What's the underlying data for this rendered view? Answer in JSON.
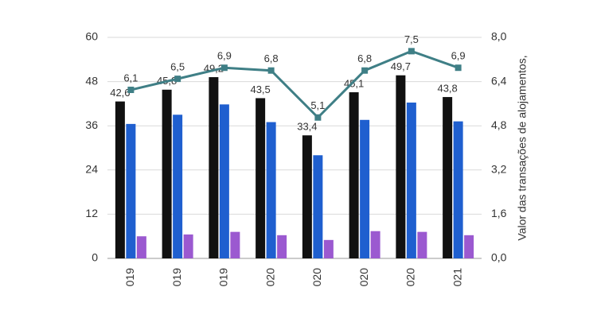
{
  "chart_data": {
    "type": "bar",
    "y2_label": "Valor das transações de alojamentos,",
    "categories": [
      "019",
      "019",
      "019",
      "020",
      "020",
      "020",
      "020",
      "021"
    ],
    "series": [
      {
        "color": "#111111",
        "values": [
          42.6,
          45.8,
          49.2,
          43.5,
          33.4,
          45.1,
          49.7,
          43.8
        ],
        "value_labels": [
          "42,6",
          "45,8",
          "49,2",
          "43,5",
          "33,4",
          "45,1",
          "49,7",
          "43,8"
        ]
      },
      {
        "color": "#1f5fcf",
        "values": [
          36.5,
          39,
          41.8,
          37,
          28,
          37.6,
          42.3,
          37.2
        ]
      },
      {
        "color": "#9b59d0",
        "values": [
          6,
          6.5,
          7.2,
          6.3,
          5,
          7.4,
          7.2,
          6.3
        ]
      },
      {
        "type": "line",
        "axis": "y2",
        "color": "#3f7f86",
        "values": [
          6.1,
          6.5,
          6.9,
          6.8,
          5.1,
          6.8,
          7.5,
          6.9
        ],
        "value_labels": [
          "6,1",
          "6,5",
          "6,9",
          "6,8",
          "5,1",
          "6,8",
          "7,5",
          "6,9"
        ]
      }
    ],
    "ylim": [
      0,
      60
    ],
    "yticks": [
      0,
      12,
      24,
      36,
      48,
      60
    ],
    "y2lim": [
      0,
      8
    ],
    "y2ticks": [
      {
        "value": 0,
        "label": "0,0"
      },
      {
        "value": 1.6,
        "label": "1,6"
      },
      {
        "value": 3.2,
        "label": "3,2"
      },
      {
        "value": 4.8,
        "label": "4,8"
      },
      {
        "value": 6.4,
        "label": "6,4"
      },
      {
        "value": 8,
        "label": "8,0"
      }
    ],
    "grid": true
  }
}
